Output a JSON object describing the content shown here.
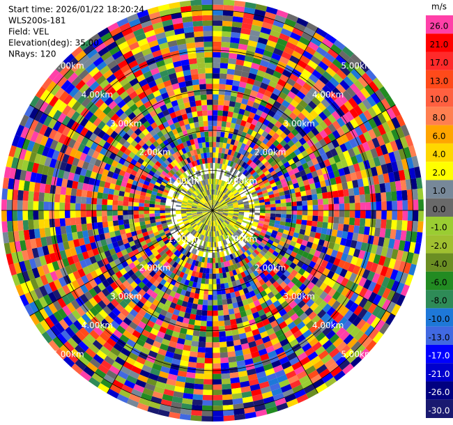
{
  "header": {
    "lines": [
      "Start time: 2026/01/22 18:20:24",
      "WLS200s-181",
      "Field: VEL",
      "Elevation(deg): 35.00",
      "NRays: 120"
    ]
  },
  "plot": {
    "ring_labels": [
      "1.00km",
      "2.00km",
      "3.00km",
      "4.00km",
      "5.00km"
    ]
  },
  "colorbar": {
    "unit": "m/s",
    "levels": [
      {
        "value": 26,
        "label": "26.0",
        "color": "#ff40a8"
      },
      {
        "value": 21,
        "label": "21.0",
        "color": "#ff0000"
      },
      {
        "value": 17,
        "label": "17.0",
        "color": "#ff2a2a"
      },
      {
        "value": 13,
        "label": "13.0",
        "color": "#ff4a1a"
      },
      {
        "value": 10,
        "label": "10.0",
        "color": "#ff6040"
      },
      {
        "value": 8,
        "label": "8.0",
        "color": "#ff7f50"
      },
      {
        "value": 6,
        "label": "6.0",
        "color": "#ffa500"
      },
      {
        "value": 4,
        "label": "4.0",
        "color": "#ffd700"
      },
      {
        "value": 2,
        "label": "2.0",
        "color": "#ffff00"
      },
      {
        "value": 1,
        "label": "1.0",
        "color": "#778899"
      },
      {
        "value": 0,
        "label": "0.0",
        "color": "#696969"
      },
      {
        "value": -1,
        "label": "-1.0",
        "color": "#9acd32"
      },
      {
        "value": -2,
        "label": "-2.0",
        "color": "#a0c030"
      },
      {
        "value": -4,
        "label": "-4.0",
        "color": "#6b8e23"
      },
      {
        "value": -6,
        "label": "-6.0",
        "color": "#228b22"
      },
      {
        "value": -8,
        "label": "-8.0",
        "color": "#2e8b57"
      },
      {
        "value": -10,
        "label": "-10.0",
        "color": "#1e78d8"
      },
      {
        "value": -13,
        "label": "-13.0",
        "color": "#4169e1"
      },
      {
        "value": -17,
        "label": "-17.0",
        "color": "#0000ff"
      },
      {
        "value": -21,
        "label": "-21.0",
        "color": "#0000cd"
      },
      {
        "value": -26,
        "label": "-26.0",
        "color": "#000080"
      },
      {
        "value": -30,
        "label": "-30.0",
        "color": "#191970"
      }
    ]
  }
}
